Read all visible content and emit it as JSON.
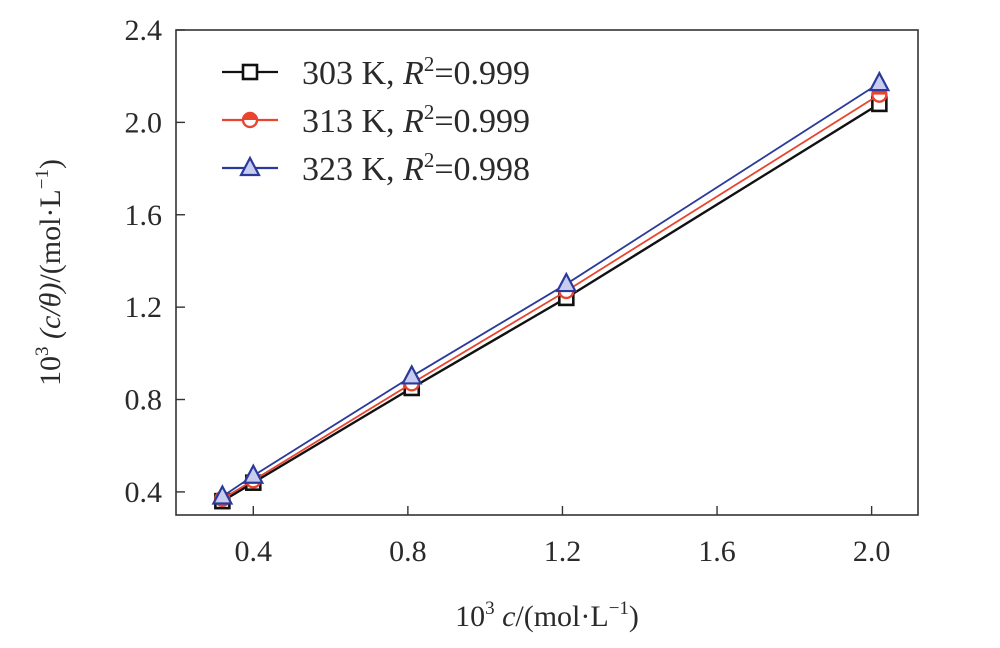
{
  "chart_data": {
    "type": "line",
    "title": "",
    "xlabel_prefix": "10",
    "xlabel_sup": "3",
    "xlabel_var": "c",
    "xlabel_unit": "/(mol·L",
    "xlabel_unit_sup": "−1",
    "xlabel_close": ")",
    "ylabel_prefix": "10",
    "ylabel_sup": "3",
    "ylabel_mid": " (c/θ)",
    "ylabel_unit": "/(mol·L",
    "ylabel_unit_sup": "−1",
    "ylabel_close": ")",
    "xlim": [
      0.2,
      2.12
    ],
    "ylim": [
      0.3,
      2.4
    ],
    "xticks": [
      "0.4",
      "0.8",
      "1.2",
      "1.6",
      "2.0"
    ],
    "xtick_values": [
      0.4,
      0.8,
      1.2,
      1.6,
      2.0
    ],
    "yticks": [
      "0.4",
      "0.8",
      "1.2",
      "1.6",
      "2.0",
      "2.4"
    ],
    "ytick_values": [
      0.4,
      0.8,
      1.2,
      1.6,
      2.0,
      2.4
    ],
    "legend_position": "top-left",
    "series": [
      {
        "name": "303 K",
        "r2_label": "R",
        "r2_sup": "2",
        "r2_value": "=0.999",
        "label_prefix": "303 K, ",
        "color": "#111111",
        "marker": "square",
        "x": [
          0.32,
          0.4,
          0.81,
          1.21,
          2.02
        ],
        "y": [
          0.36,
          0.44,
          0.85,
          1.24,
          2.08
        ]
      },
      {
        "name": "313 K",
        "r2_label": "R",
        "r2_sup": "2",
        "r2_value": "=0.999",
        "label_prefix": "313 K, ",
        "color": "#e8452f",
        "marker": "circle",
        "x": [
          0.32,
          0.4,
          0.81,
          1.21,
          2.02
        ],
        "y": [
          0.37,
          0.45,
          0.87,
          1.27,
          2.12
        ]
      },
      {
        "name": "323 K",
        "r2_label": "R",
        "r2_sup": "2",
        "r2_value": "=0.998",
        "label_prefix": "323 K, ",
        "color": "#2a3a9c",
        "marker": "triangle",
        "x": [
          0.32,
          0.4,
          0.81,
          1.21,
          2.02
        ],
        "y": [
          0.38,
          0.47,
          0.9,
          1.3,
          2.17
        ]
      }
    ]
  }
}
